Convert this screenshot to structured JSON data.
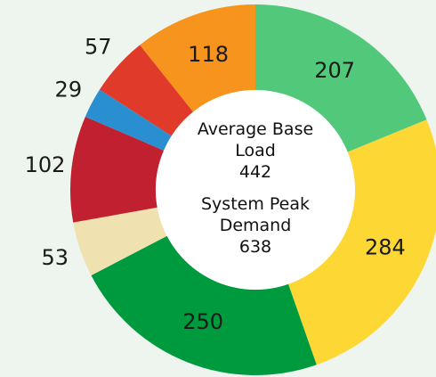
{
  "chart_data": {
    "type": "donut",
    "categories": [
      null,
      null,
      null,
      null,
      null,
      null,
      null,
      null
    ],
    "values": [
      207,
      284,
      250,
      53,
      102,
      29,
      57,
      118
    ],
    "colors": [
      "#52c87a",
      "#fdd835",
      "#009a3e",
      "#f0e2b0",
      "#c0202f",
      "#2a8fd0",
      "#e03a2a",
      "#f7941e"
    ],
    "center_labels": [
      {
        "label": "Average Base Load",
        "value": 442
      },
      {
        "label": "System Peak Demand",
        "value": 638
      }
    ]
  }
}
